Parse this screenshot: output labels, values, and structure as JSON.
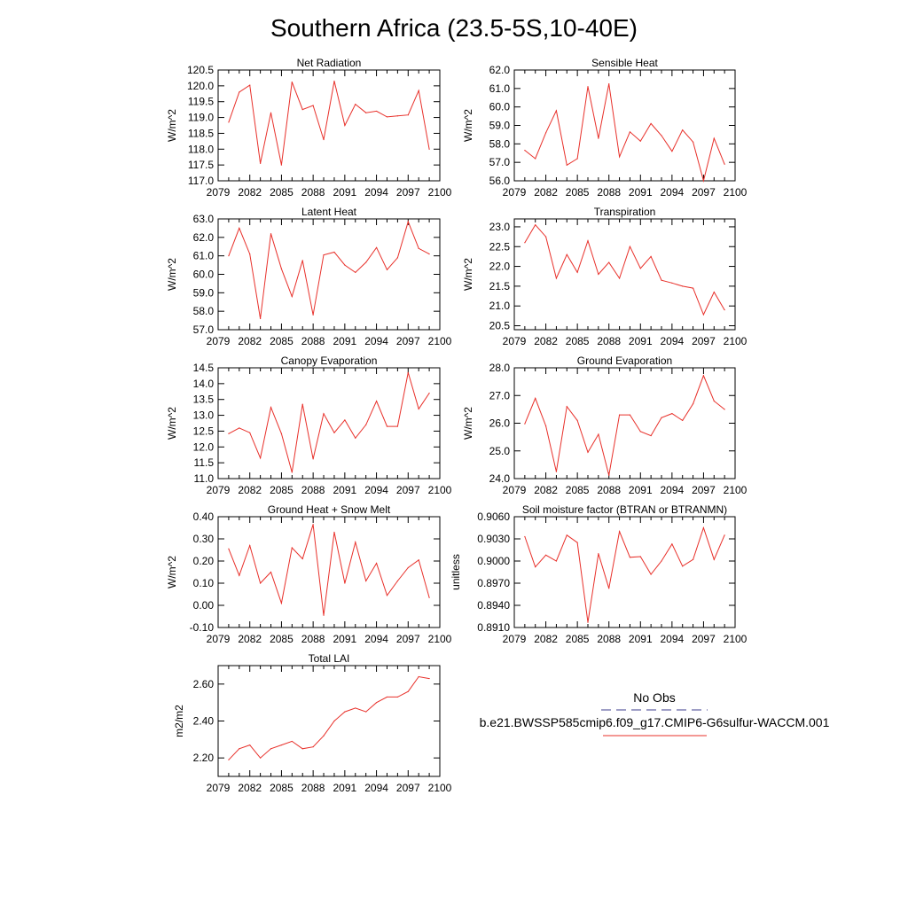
{
  "title": "Southern Africa (23.5-5S,10-40E)",
  "colors": {
    "model": "#e8302a",
    "obs": "#3c3c8c",
    "axis": "#000000"
  },
  "legend": {
    "entries": [
      {
        "label": "No Obs",
        "color": "#3c3c8c",
        "style": "dashed"
      },
      {
        "label": "b.e21.BWSSP585cmip6.f09_g17.CMIP6-G6sulfur-WACCM.001",
        "color": "#e8302a",
        "style": "solid"
      }
    ]
  },
  "chart_data": [
    {
      "type": "line",
      "title": "Net Radiation",
      "ylabel": "W/m^2",
      "xlim": [
        2079,
        2100
      ],
      "xticks": [
        "2079",
        "2082",
        "2085",
        "2088",
        "2091",
        "2094",
        "2097",
        "2100"
      ],
      "ylim": [
        117.0,
        120.5
      ],
      "yticks": [
        "117.0",
        "117.5",
        "118.0",
        "118.5",
        "119.0",
        "119.5",
        "120.0",
        "120.5"
      ],
      "x": [
        2080,
        2081,
        2082,
        2083,
        2084,
        2085,
        2086,
        2087,
        2088,
        2089,
        2090,
        2091,
        2092,
        2093,
        2094,
        2095,
        2096,
        2097,
        2098,
        2099
      ],
      "series": [
        {
          "name": "b.e21.BWSSP585cmip6.f09_g17.CMIP6-G6sulfur-WACCM.001",
          "values": [
            118.85,
            119.8,
            120.02,
            117.55,
            119.15,
            117.5,
            120.12,
            119.25,
            119.38,
            118.3,
            120.15,
            118.75,
            119.42,
            119.15,
            119.2,
            119.02,
            119.05,
            119.08,
            119.85,
            118.0
          ]
        }
      ]
    },
    {
      "type": "line",
      "title": "Sensible Heat",
      "ylabel": "W/m^2",
      "xlim": [
        2079,
        2100
      ],
      "xticks": [
        "2079",
        "2082",
        "2085",
        "2088",
        "2091",
        "2094",
        "2097",
        "2100"
      ],
      "ylim": [
        56.0,
        62.0
      ],
      "yticks": [
        "56.0",
        "57.0",
        "58.0",
        "59.0",
        "60.0",
        "61.0",
        "62.0"
      ],
      "x": [
        2080,
        2081,
        2082,
        2083,
        2084,
        2085,
        2086,
        2087,
        2088,
        2089,
        2090,
        2091,
        2092,
        2093,
        2094,
        2095,
        2096,
        2097,
        2098,
        2099
      ],
      "series": [
        {
          "name": "b.e21.BWSSP585cmip6.f09_g17.CMIP6-G6sulfur-WACCM.001",
          "values": [
            57.65,
            57.2,
            58.6,
            59.8,
            56.85,
            57.2,
            61.1,
            58.3,
            61.25,
            57.3,
            58.65,
            58.15,
            59.1,
            58.45,
            57.6,
            58.75,
            58.1,
            56.0,
            58.3,
            56.9
          ]
        }
      ]
    },
    {
      "type": "line",
      "title": "Latent Heat",
      "ylabel": "W/m^2",
      "xlim": [
        2079,
        2100
      ],
      "xticks": [
        "2079",
        "2082",
        "2085",
        "2088",
        "2091",
        "2094",
        "2097",
        "2100"
      ],
      "ylim": [
        57.0,
        63.0
      ],
      "yticks": [
        "57.0",
        "58.0",
        "59.0",
        "60.0",
        "61.0",
        "62.0",
        "63.0"
      ],
      "x": [
        2080,
        2081,
        2082,
        2083,
        2084,
        2085,
        2086,
        2087,
        2088,
        2089,
        2090,
        2091,
        2092,
        2093,
        2094,
        2095,
        2096,
        2097,
        2098,
        2099
      ],
      "series": [
        {
          "name": "b.e21.BWSSP585cmip6.f09_g17.CMIP6-G6sulfur-WACCM.001",
          "values": [
            61.0,
            62.5,
            61.1,
            57.6,
            62.2,
            60.3,
            58.8,
            60.75,
            57.8,
            61.05,
            61.2,
            60.5,
            60.1,
            60.65,
            61.45,
            60.25,
            60.9,
            62.85,
            61.4,
            61.1
          ]
        }
      ]
    },
    {
      "type": "line",
      "title": "Transpiration",
      "ylabel": "W/m^2",
      "xlim": [
        2079,
        2100
      ],
      "xticks": [
        "2079",
        "2082",
        "2085",
        "2088",
        "2091",
        "2094",
        "2097",
        "2100"
      ],
      "ylim": [
        20.4,
        23.2
      ],
      "yticks": [
        "20.5",
        "21.0",
        "21.5",
        "22.0",
        "22.5",
        "23.0"
      ],
      "x": [
        2080,
        2081,
        2082,
        2083,
        2084,
        2085,
        2086,
        2087,
        2088,
        2089,
        2090,
        2091,
        2092,
        2093,
        2094,
        2095,
        2096,
        2097,
        2098,
        2099
      ],
      "series": [
        {
          "name": "b.e21.BWSSP585cmip6.f09_g17.CMIP6-G6sulfur-WACCM.001",
          "values": [
            22.6,
            23.05,
            22.75,
            21.7,
            22.3,
            21.85,
            22.65,
            21.8,
            22.1,
            21.7,
            22.5,
            21.95,
            22.25,
            21.65,
            21.58,
            21.5,
            21.45,
            20.78,
            21.35,
            20.9
          ]
        }
      ]
    },
    {
      "type": "line",
      "title": "Canopy Evaporation",
      "ylabel": "W/m^2",
      "xlim": [
        2079,
        2100
      ],
      "xticks": [
        "2079",
        "2082",
        "2085",
        "2088",
        "2091",
        "2094",
        "2097",
        "2100"
      ],
      "ylim": [
        11.0,
        14.5
      ],
      "yticks": [
        "11.0",
        "11.5",
        "12.0",
        "12.5",
        "13.0",
        "13.5",
        "14.0",
        "14.5"
      ],
      "x": [
        2080,
        2081,
        2082,
        2083,
        2084,
        2085,
        2086,
        2087,
        2088,
        2089,
        2090,
        2091,
        2092,
        2093,
        2094,
        2095,
        2096,
        2097,
        2098,
        2099
      ],
      "series": [
        {
          "name": "b.e21.BWSSP585cmip6.f09_g17.CMIP6-G6sulfur-WACCM.001",
          "values": [
            12.42,
            12.6,
            12.45,
            11.65,
            13.25,
            12.42,
            11.2,
            13.35,
            11.62,
            13.05,
            12.45,
            12.85,
            12.28,
            12.7,
            13.45,
            12.65,
            12.65,
            14.35,
            13.2,
            13.7
          ]
        }
      ]
    },
    {
      "type": "line",
      "title": "Ground Evaporation",
      "ylabel": "W/m^2",
      "xlim": [
        2079,
        2100
      ],
      "xticks": [
        "2079",
        "2082",
        "2085",
        "2088",
        "2091",
        "2094",
        "2097",
        "2100"
      ],
      "ylim": [
        24.0,
        28.0
      ],
      "yticks": [
        "24.0",
        "25.0",
        "26.0",
        "27.0",
        "28.0"
      ],
      "x": [
        2080,
        2081,
        2082,
        2083,
        2084,
        2085,
        2086,
        2087,
        2088,
        2089,
        2090,
        2091,
        2092,
        2093,
        2094,
        2095,
        2096,
        2097,
        2098,
        2099
      ],
      "series": [
        {
          "name": "b.e21.BWSSP585cmip6.f09_g17.CMIP6-G6sulfur-WACCM.001",
          "values": [
            25.98,
            26.9,
            25.9,
            24.25,
            26.6,
            26.1,
            24.95,
            25.6,
            24.12,
            26.3,
            26.3,
            25.7,
            25.55,
            26.2,
            26.35,
            26.1,
            26.7,
            27.72,
            26.8,
            26.5
          ]
        }
      ]
    },
    {
      "type": "line",
      "title": "Ground Heat + Snow Melt",
      "ylabel": "W/m^2",
      "xlim": [
        2079,
        2100
      ],
      "xticks": [
        "2079",
        "2082",
        "2085",
        "2088",
        "2091",
        "2094",
        "2097",
        "2100"
      ],
      "ylim": [
        -0.1,
        0.4
      ],
      "yticks": [
        "-0.10",
        "0.00",
        "0.10",
        "0.20",
        "0.30",
        "0.40"
      ],
      "x": [
        2080,
        2081,
        2082,
        2083,
        2084,
        2085,
        2086,
        2087,
        2088,
        2089,
        2090,
        2091,
        2092,
        2093,
        2094,
        2095,
        2096,
        2097,
        2098,
        2099
      ],
      "series": [
        {
          "name": "b.e21.BWSSP585cmip6.f09_g17.CMIP6-G6sulfur-WACCM.001",
          "values": [
            0.255,
            0.135,
            0.27,
            0.1,
            0.15,
            0.01,
            0.26,
            0.21,
            0.365,
            -0.045,
            0.33,
            0.1,
            0.285,
            0.11,
            0.19,
            0.045,
            0.11,
            0.17,
            0.205,
            0.035
          ]
        }
      ]
    },
    {
      "type": "line",
      "title": "Soil moisture factor (BTRAN or BTRANMN)",
      "ylabel": "unitless",
      "xlim": [
        2079,
        2100
      ],
      "xticks": [
        "2079",
        "2082",
        "2085",
        "2088",
        "2091",
        "2094",
        "2097",
        "2100"
      ],
      "ylim": [
        0.891,
        0.906
      ],
      "yticks": [
        "0.8910",
        "0.8940",
        "0.8970",
        "0.9000",
        "0.9030",
        "0.9060"
      ],
      "x": [
        2080,
        2081,
        2082,
        2083,
        2084,
        2085,
        2086,
        2087,
        2088,
        2089,
        2090,
        2091,
        2092,
        2093,
        2094,
        2095,
        2096,
        2097,
        2098,
        2099
      ],
      "series": [
        {
          "name": "b.e21.BWSSP585cmip6.f09_g17.CMIP6-G6sulfur-WACCM.001",
          "values": [
            0.9033,
            0.8992,
            0.9008,
            0.9,
            0.9035,
            0.9025,
            0.8917,
            0.901,
            0.8963,
            0.904,
            0.9005,
            0.9006,
            0.8982,
            0.9,
            0.9023,
            0.8993,
            0.9002,
            0.9045,
            0.9002,
            0.9035
          ]
        }
      ]
    },
    {
      "type": "line",
      "title": "Total LAI",
      "ylabel": "m2/m2",
      "xlim": [
        2079,
        2100
      ],
      "xticks": [
        "2079",
        "2082",
        "2085",
        "2088",
        "2091",
        "2094",
        "2097",
        "2100"
      ],
      "ylim": [
        2.1,
        2.7
      ],
      "yticks": [
        "2.20",
        "2.40",
        "2.60"
      ],
      "x": [
        2080,
        2081,
        2082,
        2083,
        2084,
        2085,
        2086,
        2087,
        2088,
        2089,
        2090,
        2091,
        2092,
        2093,
        2094,
        2095,
        2096,
        2097,
        2098,
        2099
      ],
      "series": [
        {
          "name": "b.e21.BWSSP585cmip6.f09_g17.CMIP6-G6sulfur-WACCM.001",
          "values": [
            2.19,
            2.25,
            2.27,
            2.2,
            2.25,
            2.27,
            2.29,
            2.25,
            2.26,
            2.32,
            2.4,
            2.45,
            2.47,
            2.45,
            2.5,
            2.53,
            2.53,
            2.56,
            2.64,
            2.63
          ]
        }
      ]
    }
  ]
}
